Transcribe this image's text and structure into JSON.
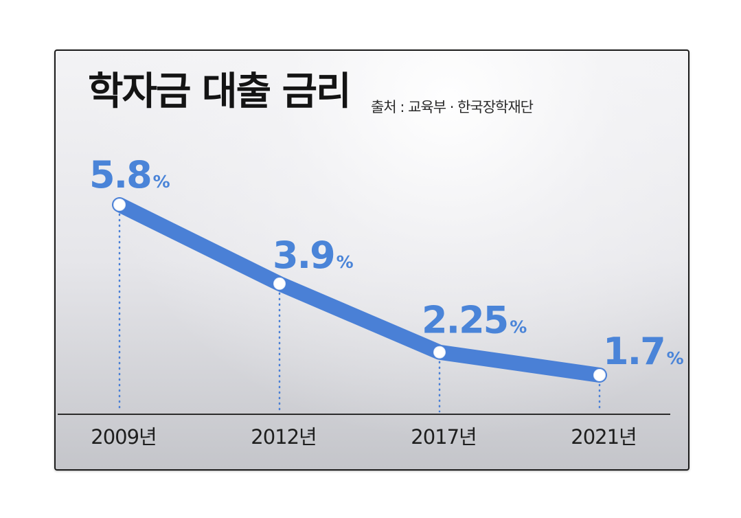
{
  "colors": {
    "accent": "#4a80d6",
    "label": "#4a84d8",
    "axis": "#2b2b2b"
  },
  "chart_data": {
    "type": "line",
    "title": "학자금 대출 금리",
    "subtitle": "출처 : 교육부 · 한국장학재단",
    "categories": [
      "2009년",
      "2012년",
      "2017년",
      "2021년"
    ],
    "values": [
      5.8,
      3.9,
      2.25,
      1.7
    ],
    "value_suffix": "%",
    "grid": false,
    "legend": "none",
    "data_labels": true
  }
}
